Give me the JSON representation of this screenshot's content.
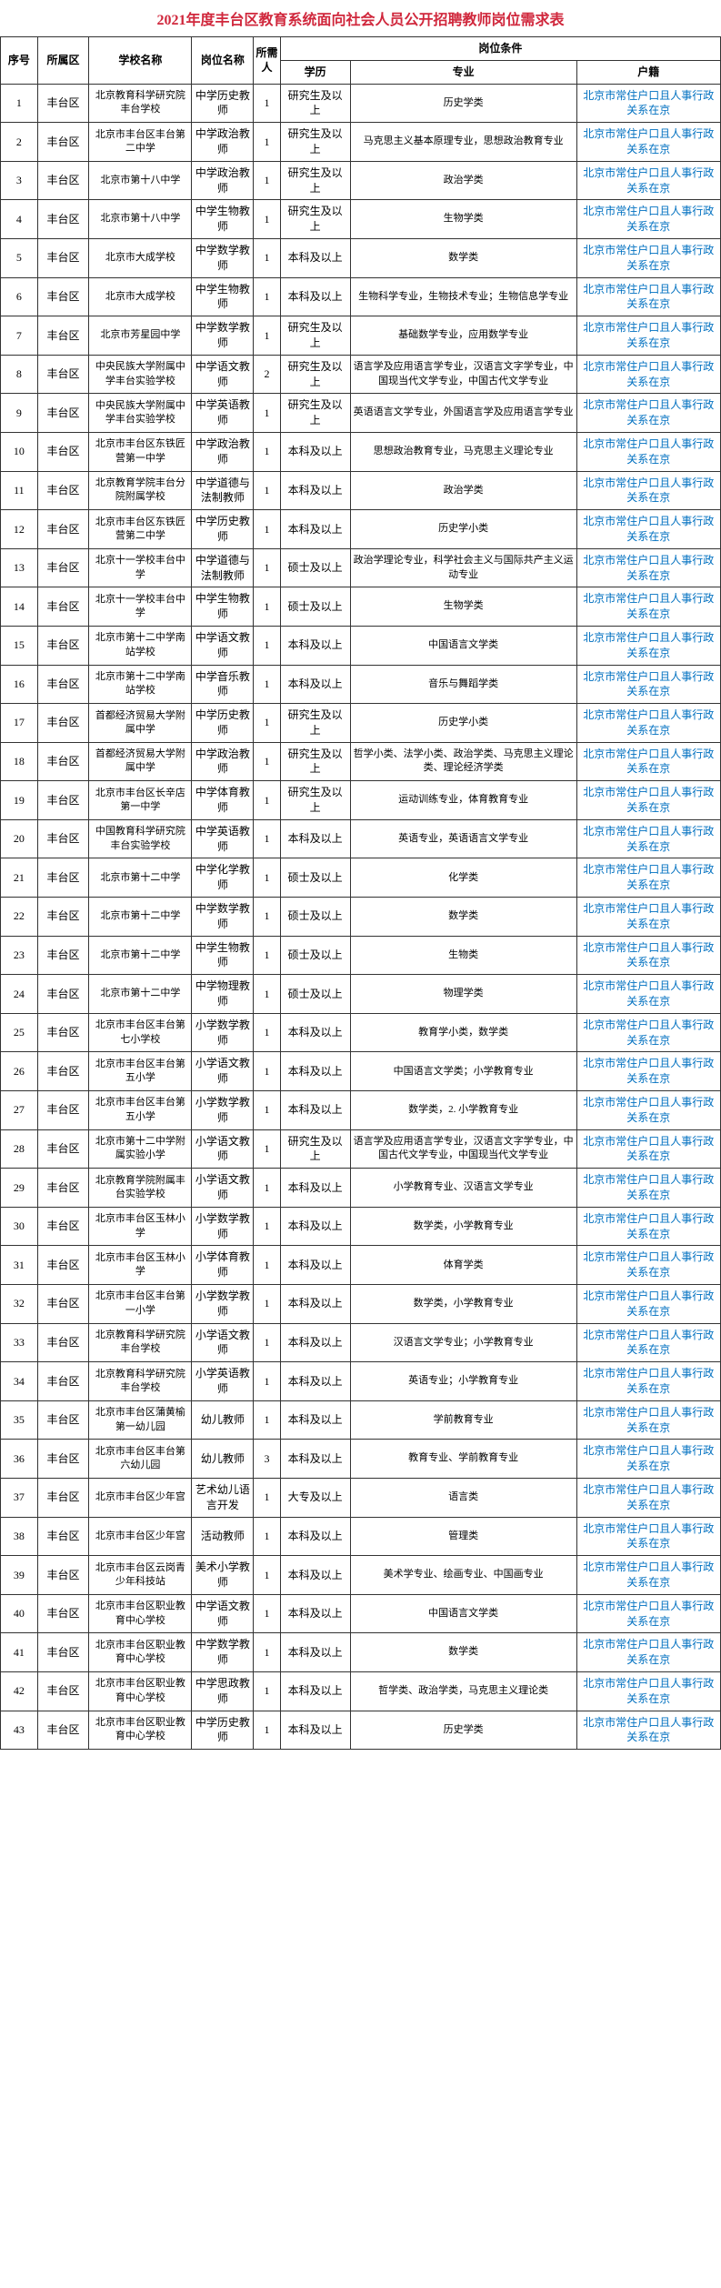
{
  "title": "2021年度丰台区教育系统面向社会人员公开招聘教师岗位需求表",
  "headers": {
    "seq": "序号",
    "district": "所属区",
    "school": "学校名称",
    "position": "岗位名称",
    "count": "所需人",
    "conditions": "岗位条件",
    "education": "学历",
    "major": "专业",
    "hukou": "户籍"
  },
  "hukou_text": "北京市常住户口且人事行政关系在京",
  "rows": [
    {
      "seq": "1",
      "district": "丰台区",
      "school": "北京教育科学研究院丰台学校",
      "position": "中学历史教师",
      "count": "1",
      "edu": "研究生及以上",
      "major": "历史学类"
    },
    {
      "seq": "2",
      "district": "丰台区",
      "school": "北京市丰台区丰台第二中学",
      "position": "中学政治教师",
      "count": "1",
      "edu": "研究生及以上",
      "major": "马克思主义基本原理专业，思想政治教育专业"
    },
    {
      "seq": "3",
      "district": "丰台区",
      "school": "北京市第十八中学",
      "position": "中学政治教师",
      "count": "1",
      "edu": "研究生及以上",
      "major": "政治学类"
    },
    {
      "seq": "4",
      "district": "丰台区",
      "school": "北京市第十八中学",
      "position": "中学生物教师",
      "count": "1",
      "edu": "研究生及以上",
      "major": "生物学类"
    },
    {
      "seq": "5",
      "district": "丰台区",
      "school": "北京市大成学校",
      "position": "中学数学教师",
      "count": "1",
      "edu": "本科及以上",
      "major": "数学类"
    },
    {
      "seq": "6",
      "district": "丰台区",
      "school": "北京市大成学校",
      "position": "中学生物教师",
      "count": "1",
      "edu": "本科及以上",
      "major": "生物科学专业，生物技术专业；生物信息学专业"
    },
    {
      "seq": "7",
      "district": "丰台区",
      "school": "北京市芳星园中学",
      "position": "中学数学教师",
      "count": "1",
      "edu": "研究生及以上",
      "major": "基础数学专业，应用数学专业"
    },
    {
      "seq": "8",
      "district": "丰台区",
      "school": "中央民族大学附属中学丰台实验学校",
      "position": "中学语文教师",
      "count": "2",
      "edu": "研究生及以上",
      "major": "语言学及应用语言学专业，汉语言文字学专业，中国现当代文学专业，中国古代文学专业"
    },
    {
      "seq": "9",
      "district": "丰台区",
      "school": "中央民族大学附属中学丰台实验学校",
      "position": "中学英语教师",
      "count": "1",
      "edu": "研究生及以上",
      "major": "英语语言文学专业，外国语言学及应用语言学专业"
    },
    {
      "seq": "10",
      "district": "丰台区",
      "school": "北京市丰台区东铁匠营第一中学",
      "position": "中学政治教师",
      "count": "1",
      "edu": "本科及以上",
      "major": "思想政治教育专业，马克思主义理论专业"
    },
    {
      "seq": "11",
      "district": "丰台区",
      "school": "北京教育学院丰台分院附属学校",
      "position": "中学道德与法制教师",
      "count": "1",
      "edu": "本科及以上",
      "major": "政治学类"
    },
    {
      "seq": "12",
      "district": "丰台区",
      "school": "北京市丰台区东铁匠营第二中学",
      "position": "中学历史教师",
      "count": "1",
      "edu": "本科及以上",
      "major": "历史学小类"
    },
    {
      "seq": "13",
      "district": "丰台区",
      "school": "北京十一学校丰台中学",
      "position": "中学道德与法制教师",
      "count": "1",
      "edu": "硕士及以上",
      "major": "政治学理论专业，科学社会主义与国际共产主义运动专业"
    },
    {
      "seq": "14",
      "district": "丰台区",
      "school": "北京十一学校丰台中学",
      "position": "中学生物教师",
      "count": "1",
      "edu": "硕士及以上",
      "major": "生物学类"
    },
    {
      "seq": "15",
      "district": "丰台区",
      "school": "北京市第十二中学南站学校",
      "position": "中学语文教师",
      "count": "1",
      "edu": "本科及以上",
      "major": "中国语言文学类"
    },
    {
      "seq": "16",
      "district": "丰台区",
      "school": "北京市第十二中学南站学校",
      "position": "中学音乐教师",
      "count": "1",
      "edu": "本科及以上",
      "major": "音乐与舞蹈学类"
    },
    {
      "seq": "17",
      "district": "丰台区",
      "school": "首都经济贸易大学附属中学",
      "position": "中学历史教师",
      "count": "1",
      "edu": "研究生及以上",
      "major": "历史学小类"
    },
    {
      "seq": "18",
      "district": "丰台区",
      "school": "首都经济贸易大学附属中学",
      "position": "中学政治教师",
      "count": "1",
      "edu": "研究生及以上",
      "major": "哲学小类、法学小类、政治学类、马克思主义理论类、理论经济学类"
    },
    {
      "seq": "19",
      "district": "丰台区",
      "school": "北京市丰台区长辛店第一中学",
      "position": "中学体育教师",
      "count": "1",
      "edu": "研究生及以上",
      "major": "运动训练专业，体育教育专业"
    },
    {
      "seq": "20",
      "district": "丰台区",
      "school": "中国教育科学研究院丰台实验学校",
      "position": "中学英语教师",
      "count": "1",
      "edu": "本科及以上",
      "major": "英语专业，英语语言文学专业"
    },
    {
      "seq": "21",
      "district": "丰台区",
      "school": "北京市第十二中学",
      "position": "中学化学教师",
      "count": "1",
      "edu": "硕士及以上",
      "major": "化学类"
    },
    {
      "seq": "22",
      "district": "丰台区",
      "school": "北京市第十二中学",
      "position": "中学数学教师",
      "count": "1",
      "edu": "硕士及以上",
      "major": "数学类"
    },
    {
      "seq": "23",
      "district": "丰台区",
      "school": "北京市第十二中学",
      "position": "中学生物教师",
      "count": "1",
      "edu": "硕士及以上",
      "major": "生物类"
    },
    {
      "seq": "24",
      "district": "丰台区",
      "school": "北京市第十二中学",
      "position": "中学物理教师",
      "count": "1",
      "edu": "硕士及以上",
      "major": "物理学类"
    },
    {
      "seq": "25",
      "district": "丰台区",
      "school": "北京市丰台区丰台第七小学校",
      "position": "小学数学教师",
      "count": "1",
      "edu": "本科及以上",
      "major": "教育学小类，数学类"
    },
    {
      "seq": "26",
      "district": "丰台区",
      "school": "北京市丰台区丰台第五小学",
      "position": "小学语文教师",
      "count": "1",
      "edu": "本科及以上",
      "major": "中国语言文学类；小学教育专业"
    },
    {
      "seq": "27",
      "district": "丰台区",
      "school": "北京市丰台区丰台第五小学",
      "position": "小学数学教师",
      "count": "1",
      "edu": "本科及以上",
      "major": "数学类，2. 小学教育专业"
    },
    {
      "seq": "28",
      "district": "丰台区",
      "school": "北京市第十二中学附属实验小学",
      "position": "小学语文教师",
      "count": "1",
      "edu": "研究生及以上",
      "major": "语言学及应用语言学专业，汉语言文字学专业，中国古代文学专业，中国现当代文学专业"
    },
    {
      "seq": "29",
      "district": "丰台区",
      "school": "北京教育学院附属丰台实验学校",
      "position": "小学语文教师",
      "count": "1",
      "edu": "本科及以上",
      "major": "小学教育专业、汉语言文学专业"
    },
    {
      "seq": "30",
      "district": "丰台区",
      "school": "北京市丰台区玉林小学",
      "position": "小学数学教师",
      "count": "1",
      "edu": "本科及以上",
      "major": "数学类，小学教育专业"
    },
    {
      "seq": "31",
      "district": "丰台区",
      "school": "北京市丰台区玉林小学",
      "position": "小学体育教师",
      "count": "1",
      "edu": "本科及以上",
      "major": "体育学类"
    },
    {
      "seq": "32",
      "district": "丰台区",
      "school": "北京市丰台区丰台第一小学",
      "position": "小学数学教师",
      "count": "1",
      "edu": "本科及以上",
      "major": "数学类，小学教育专业"
    },
    {
      "seq": "33",
      "district": "丰台区",
      "school": "北京教育科学研究院丰台学校",
      "position": "小学语文教师",
      "count": "1",
      "edu": "本科及以上",
      "major": "汉语言文学专业；小学教育专业"
    },
    {
      "seq": "34",
      "district": "丰台区",
      "school": "北京教育科学研究院丰台学校",
      "position": "小学英语教师",
      "count": "1",
      "edu": "本科及以上",
      "major": "英语专业；小学教育专业"
    },
    {
      "seq": "35",
      "district": "丰台区",
      "school": "北京市丰台区蒲黄榆第一幼儿园",
      "position": "幼儿教师",
      "count": "1",
      "edu": "本科及以上",
      "major": "学前教育专业"
    },
    {
      "seq": "36",
      "district": "丰台区",
      "school": "北京市丰台区丰台第六幼儿园",
      "position": "幼儿教师",
      "count": "3",
      "edu": "本科及以上",
      "major": "教育专业、学前教育专业"
    },
    {
      "seq": "37",
      "district": "丰台区",
      "school": "北京市丰台区少年宫",
      "position": "艺术幼儿语言开发",
      "count": "1",
      "edu": "大专及以上",
      "major": "语言类"
    },
    {
      "seq": "38",
      "district": "丰台区",
      "school": "北京市丰台区少年宫",
      "position": "活动教师",
      "count": "1",
      "edu": "本科及以上",
      "major": "管理类"
    },
    {
      "seq": "39",
      "district": "丰台区",
      "school": "北京市丰台区云岗青少年科技站",
      "position": "美术小学教师",
      "count": "1",
      "edu": "本科及以上",
      "major": "美术学专业、绘画专业、中国画专业"
    },
    {
      "seq": "40",
      "district": "丰台区",
      "school": "北京市丰台区职业教育中心学校",
      "position": "中学语文教师",
      "count": "1",
      "edu": "本科及以上",
      "major": "中国语言文学类"
    },
    {
      "seq": "41",
      "district": "丰台区",
      "school": "北京市丰台区职业教育中心学校",
      "position": "中学数学教师",
      "count": "1",
      "edu": "本科及以上",
      "major": "数学类"
    },
    {
      "seq": "42",
      "district": "丰台区",
      "school": "北京市丰台区职业教育中心学校",
      "position": "中学思政教师",
      "count": "1",
      "edu": "本科及以上",
      "major": "哲学类、政治学类，马克思主义理论类"
    },
    {
      "seq": "43",
      "district": "丰台区",
      "school": "北京市丰台区职业教育中心学校",
      "position": "中学历史教师",
      "count": "1",
      "edu": "本科及以上",
      "major": "历史学类"
    }
  ]
}
